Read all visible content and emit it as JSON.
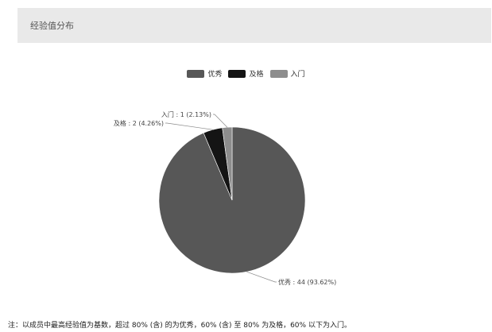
{
  "header": {
    "title": "经验值分布"
  },
  "legend": [
    {
      "label": "优秀",
      "color": "#575757"
    },
    {
      "label": "及格",
      "color": "#141414"
    },
    {
      "label": "入门",
      "color": "#8d8d8d"
    }
  ],
  "chart_data": {
    "type": "pie",
    "categories": [
      "优秀",
      "及格",
      "入门"
    ],
    "values": [
      44,
      2,
      1
    ],
    "data_labels": [
      "优秀 : 44 (93.62%)",
      "及格 : 2 (4.26%)",
      "入门 : 1 (2.13%)"
    ],
    "colors": [
      "#575757",
      "#141414",
      "#8d8d8d"
    ],
    "title": "经验值分布",
    "legend_position": "top-center"
  },
  "note": "注：以成员中最高经验值为基数，超过 80% (含) 的为优秀，60% (含) 至 80% 为及格，60% 以下为入门。"
}
